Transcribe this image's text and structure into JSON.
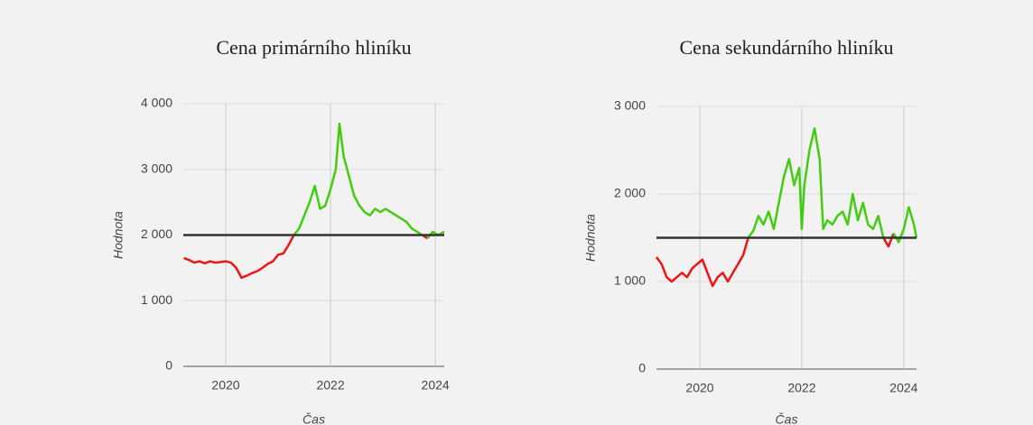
{
  "chart_data": [
    {
      "type": "line",
      "title": "Cena primárního hliníku",
      "xlabel": "Čas",
      "ylabel": "Hodnota",
      "x": [
        2019.2,
        2019.3,
        2019.4,
        2019.5,
        2019.6,
        2019.7,
        2019.8,
        2019.9,
        2020.0,
        2020.1,
        2020.2,
        2020.3,
        2020.4,
        2020.5,
        2020.6,
        2020.7,
        2020.8,
        2020.9,
        2021.0,
        2021.1,
        2021.2,
        2021.3,
        2021.4,
        2021.5,
        2021.6,
        2021.7,
        2021.8,
        2021.9,
        2022.0,
        2022.1,
        2022.17,
        2022.25,
        2022.35,
        2022.45,
        2022.55,
        2022.65,
        2022.75,
        2022.85,
        2022.95,
        2023.05,
        2023.15,
        2023.25,
        2023.35,
        2023.45,
        2023.55,
        2023.65,
        2023.75,
        2023.85,
        2023.95,
        2024.05,
        2024.17
      ],
      "values": [
        1650,
        1620,
        1580,
        1600,
        1570,
        1600,
        1580,
        1590,
        1600,
        1580,
        1500,
        1350,
        1380,
        1420,
        1450,
        1500,
        1560,
        1600,
        1700,
        1720,
        1850,
        2000,
        2100,
        2300,
        2500,
        2750,
        2400,
        2450,
        2700,
        3000,
        3700,
        3200,
        2900,
        2600,
        2450,
        2350,
        2300,
        2400,
        2350,
        2400,
        2350,
        2300,
        2250,
        2200,
        2100,
        2050,
        2000,
        1950,
        2050,
        2000,
        2050
      ],
      "threshold": 2000,
      "color_above": "#44cc11",
      "color_below": "#ee1515",
      "threshold_color": "#333333",
      "xlim": [
        2019.19,
        2024.17
      ],
      "xticks": [
        2020,
        2022,
        2024
      ],
      "ylim": [
        0,
        4000
      ],
      "yticks": [
        0,
        {
          "value": 1000,
          "label": "1 000"
        },
        {
          "value": 2000,
          "label": "2 000"
        },
        {
          "value": 3000,
          "label": "3 000"
        },
        {
          "value": 4000,
          "label": "4 000"
        }
      ],
      "grid": true
    },
    {
      "type": "line",
      "title": "Cena sekundárního hliníku",
      "xlabel": "Čas",
      "ylabel": "Hodnota",
      "x": [
        2019.15,
        2019.25,
        2019.35,
        2019.45,
        2019.55,
        2019.65,
        2019.75,
        2019.85,
        2019.95,
        2020.05,
        2020.15,
        2020.25,
        2020.35,
        2020.45,
        2020.55,
        2020.65,
        2020.75,
        2020.85,
        2020.95,
        2021.05,
        2021.15,
        2021.25,
        2021.35,
        2021.45,
        2021.55,
        2021.65,
        2021.75,
        2021.85,
        2021.95,
        2022.0,
        2022.05,
        2022.15,
        2022.25,
        2022.35,
        2022.42,
        2022.5,
        2022.6,
        2022.7,
        2022.8,
        2022.9,
        2023.0,
        2023.1,
        2023.2,
        2023.3,
        2023.4,
        2023.5,
        2023.6,
        2023.7,
        2023.8,
        2023.9,
        2024.0,
        2024.1,
        2024.2,
        2024.25
      ],
      "values": [
        1280,
        1200,
        1050,
        1000,
        1050,
        1100,
        1050,
        1150,
        1200,
        1250,
        1100,
        950,
        1050,
        1100,
        1000,
        1100,
        1200,
        1300,
        1500,
        1580,
        1750,
        1650,
        1800,
        1600,
        1900,
        2200,
        2400,
        2100,
        2300,
        1600,
        2100,
        2500,
        2750,
        2400,
        1600,
        1700,
        1650,
        1750,
        1800,
        1650,
        2000,
        1700,
        1900,
        1650,
        1600,
        1750,
        1500,
        1400,
        1550,
        1450,
        1600,
        1850,
        1650,
        1500
      ],
      "threshold": 1500,
      "color_above": "#44cc11",
      "color_below": "#ee1515",
      "threshold_color": "#333333",
      "xlim": [
        2019.15,
        2024.25
      ],
      "xticks": [
        2020,
        2022,
        2024
      ],
      "ylim": [
        0,
        3000
      ],
      "yticks": [
        0,
        {
          "value": 1000,
          "label": "1 000"
        },
        {
          "value": 2000,
          "label": "2 000"
        },
        {
          "value": 3000,
          "label": "3 000"
        }
      ],
      "grid": true
    }
  ]
}
